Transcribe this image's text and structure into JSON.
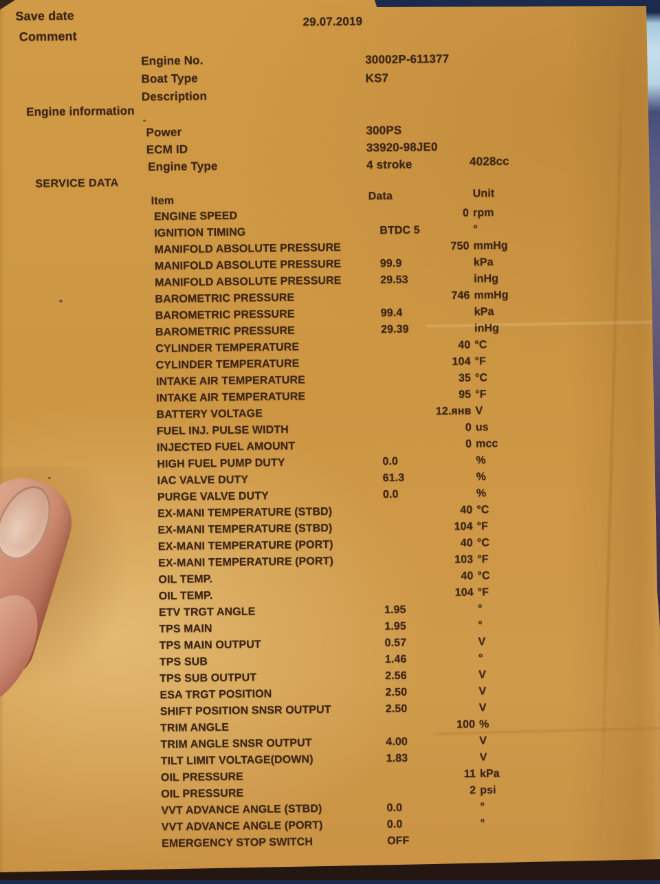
{
  "header": {
    "save_date_label": "Save date",
    "comment_label": "Comment",
    "date": "29.07.2019"
  },
  "identity": {
    "rows": [
      {
        "label": "Engine No.",
        "value": "30002P-611377"
      },
      {
        "label": "Boat Type",
        "value": "KS7"
      },
      {
        "label": "Description",
        "value": ""
      }
    ]
  },
  "engine_information": {
    "title": "Engine information",
    "rows": [
      {
        "label": "Power",
        "value": "300PS",
        "extra": ""
      },
      {
        "label": "ECM ID",
        "value": "33920-98JE0",
        "extra": ""
      },
      {
        "label": "Engine Type",
        "value": "4 stroke",
        "extra": "4028cc"
      }
    ]
  },
  "service_data": {
    "title": "SERVICE DATA",
    "columns": {
      "item": "Item",
      "data": "Data",
      "unit": "Unit"
    },
    "rows": [
      {
        "item": "ENGINE SPEED",
        "data": "",
        "value": "0",
        "unit": "rpm"
      },
      {
        "item": "IGNITION TIMING",
        "data": "BTDC 5",
        "value": "",
        "unit": "°"
      },
      {
        "item": "MANIFOLD ABSOLUTE PRESSURE",
        "data": "",
        "value": "750",
        "unit": "mmHg"
      },
      {
        "item": "MANIFOLD ABSOLUTE PRESSURE",
        "data": "99.9",
        "value": "",
        "unit": "kPa"
      },
      {
        "item": "MANIFOLD ABSOLUTE PRESSURE",
        "data": "29.53",
        "value": "",
        "unit": "inHg"
      },
      {
        "item": "BAROMETRIC PRESSURE",
        "data": "",
        "value": "746",
        "unit": "mmHg"
      },
      {
        "item": "BAROMETRIC PRESSURE",
        "data": "99.4",
        "value": "",
        "unit": "kPa"
      },
      {
        "item": "BAROMETRIC PRESSURE",
        "data": "29.39",
        "value": "",
        "unit": "inHg"
      },
      {
        "item": "CYLINDER TEMPERATURE",
        "data": "",
        "value": "40",
        "unit": "°C"
      },
      {
        "item": "CYLINDER TEMPERATURE",
        "data": "",
        "value": "104",
        "unit": "°F"
      },
      {
        "item": "INTAKE AIR TEMPERATURE",
        "data": "",
        "value": "35",
        "unit": "°C"
      },
      {
        "item": "INTAKE AIR TEMPERATURE",
        "data": "",
        "value": "95",
        "unit": "°F"
      },
      {
        "item": "BATTERY VOLTAGE",
        "data": "",
        "value": "12.янв",
        "unit": "V"
      },
      {
        "item": "FUEL INJ. PULSE WIDTH",
        "data": "",
        "value": "0",
        "unit": "us"
      },
      {
        "item": "INJECTED FUEL AMOUNT",
        "data": "",
        "value": "0",
        "unit": "mcc"
      },
      {
        "item": "HIGH FUEL PUMP DUTY",
        "data": "0.0",
        "value": "",
        "unit": "%"
      },
      {
        "item": "IAC VALVE DUTY",
        "data": "61.3",
        "value": "",
        "unit": "%"
      },
      {
        "item": "PURGE VALVE DUTY",
        "data": "0.0",
        "value": "",
        "unit": "%"
      },
      {
        "item": "EX-MANI TEMPERATURE (STBD)",
        "data": "",
        "value": "40",
        "unit": "°C"
      },
      {
        "item": "EX-MANI TEMPERATURE (STBD)",
        "data": "",
        "value": "104",
        "unit": "°F"
      },
      {
        "item": "EX-MANI TEMPERATURE (PORT)",
        "data": "",
        "value": "40",
        "unit": "°C"
      },
      {
        "item": "EX-MANI TEMPERATURE (PORT)",
        "data": "",
        "value": "103",
        "unit": "°F"
      },
      {
        "item": "OIL TEMP.",
        "data": "",
        "value": "40",
        "unit": "°C"
      },
      {
        "item": "OIL TEMP.",
        "data": "",
        "value": "104",
        "unit": "°F"
      },
      {
        "item": "ETV TRGT ANGLE",
        "data": "1.95",
        "value": "",
        "unit": "°"
      },
      {
        "item": "TPS MAIN",
        "data": "1.95",
        "value": "",
        "unit": "°"
      },
      {
        "item": "TPS MAIN OUTPUT",
        "data": "0.57",
        "value": "",
        "unit": "V"
      },
      {
        "item": "TPS SUB",
        "data": "1.46",
        "value": "",
        "unit": "°"
      },
      {
        "item": "TPS SUB OUTPUT",
        "data": "2.56",
        "value": "",
        "unit": "V"
      },
      {
        "item": "ESA TRGT POSITION",
        "data": "2.50",
        "value": "",
        "unit": "V"
      },
      {
        "item": "SHIFT POSITION SNSR OUTPUT",
        "data": "2.50",
        "value": "",
        "unit": "V"
      },
      {
        "item": "TRIM ANGLE",
        "data": "",
        "value": "100",
        "unit": "%"
      },
      {
        "item": "TRIM ANGLE SNSR OUTPUT",
        "data": "4.00",
        "value": "",
        "unit": "V"
      },
      {
        "item": "TILT LIMIT VOLTAGE(DOWN)",
        "data": "1.83",
        "value": "",
        "unit": "V"
      },
      {
        "item": "OIL PRESSURE",
        "data": "",
        "value": "11",
        "unit": "kPa"
      },
      {
        "item": "OIL PRESSURE",
        "data": "",
        "value": "2",
        "unit": "psi"
      },
      {
        "item": "VVT ADVANCE ANGLE (STBD)",
        "data": "0.0",
        "value": "",
        "unit": "°"
      },
      {
        "item": "VVT ADVANCE ANGLE (PORT)",
        "data": "0.0",
        "value": "",
        "unit": "°"
      },
      {
        "item": "EMERGENCY STOP SWITCH",
        "data": "OFF",
        "value": "",
        "unit": ""
      }
    ]
  },
  "colors": {
    "paper": "#cd9844",
    "ink": "#3b2416",
    "background_top": "#1c2a4e",
    "background_light_band": "#c4deec",
    "background_bottom": "#241712"
  }
}
